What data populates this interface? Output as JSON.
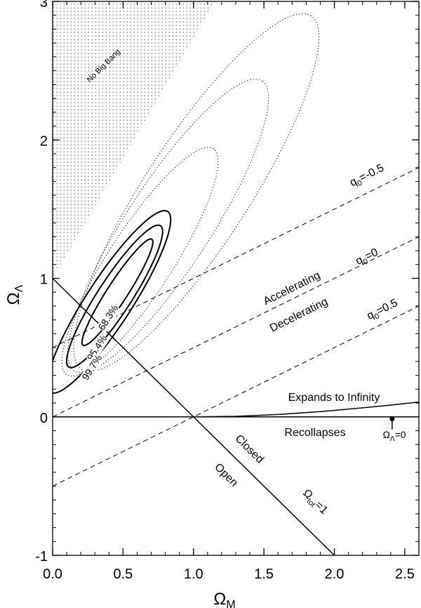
{
  "chart_data": {
    "type": "line",
    "xlabel": "Ω",
    "xlabel_sub": "M",
    "ylabel": "Ω",
    "ylabel_sub": "Λ",
    "xlim": [
      0.0,
      2.6
    ],
    "ylim": [
      -1,
      3
    ],
    "x_ticks": [
      0.0,
      0.5,
      1.0,
      1.5,
      2.0,
      2.5
    ],
    "x_tick_labels": [
      "0.0",
      "0.5",
      "1.0",
      "1.5",
      "2.0",
      "2.5"
    ],
    "y_ticks": [
      -1,
      0,
      1,
      2,
      3
    ],
    "y_tick_labels": [
      "-1",
      "0",
      "1",
      "2",
      "3"
    ],
    "grid": false,
    "confidence_contours": [
      {
        "label": "68.3%",
        "center": [
          0.46,
          0.9
        ],
        "a": 0.75,
        "b": 0.12,
        "angle_deg": 57,
        "style": "solid",
        "stroke_width": 2
      },
      {
        "label": "95.4%",
        "center": [
          0.44,
          0.87
        ],
        "a": 1.0,
        "b": 0.2,
        "angle_deg": 57,
        "style": "solid",
        "stroke_width": 2
      },
      {
        "label": "99.7%",
        "center": [
          0.4,
          0.83
        ],
        "a": 1.28,
        "b": 0.27,
        "angle_deg": 57,
        "style": "solid",
        "stroke_width": 2
      },
      {
        "label": "",
        "center": [
          0.62,
          1.12
        ],
        "a": 1.6,
        "b": 0.38,
        "angle_deg": 57,
        "style": "dotted",
        "stroke_width": 1
      },
      {
        "label": "",
        "center": [
          0.82,
          1.38
        ],
        "a": 2.05,
        "b": 0.5,
        "angle_deg": 57,
        "style": "dotted",
        "stroke_width": 1
      },
      {
        "label": "",
        "center": [
          1.02,
          1.62
        ],
        "a": 2.5,
        "b": 0.62,
        "angle_deg": 57,
        "style": "dotted",
        "stroke_width": 1
      }
    ],
    "lines": [
      {
        "name": "q0=-0.5",
        "style": "dashed",
        "x": [
          0.0,
          2.6
        ],
        "y": [
          0.5,
          1.8
        ]
      },
      {
        "name": "q0=0",
        "style": "dashed",
        "x": [
          0.0,
          2.6
        ],
        "y": [
          0.0,
          1.3
        ]
      },
      {
        "name": "q0=0.5",
        "style": "dashed",
        "x": [
          0.0,
          2.6
        ],
        "y": [
          -0.5,
          0.8
        ]
      },
      {
        "name": "Omega_tot=1",
        "style": "solid",
        "x": [
          0.0,
          2.0
        ],
        "y": [
          1.0,
          -1.0
        ]
      },
      {
        "name": "Omega_Lambda=0",
        "style": "solid",
        "x": [
          0.0,
          2.6
        ],
        "y": [
          0.0,
          0.0
        ]
      },
      {
        "name": "expands_recollapses_boundary",
        "style": "solid",
        "x": [
          1.0,
          1.3,
          1.6,
          1.9,
          2.2,
          2.4,
          2.6
        ],
        "y": [
          0.0,
          0.004,
          0.017,
          0.038,
          0.065,
          0.085,
          0.107
        ]
      }
    ],
    "no_big_bang_region": {
      "style": "stippled",
      "boundary_x": [
        0.0,
        0.0,
        1.15
      ],
      "boundary_y": [
        1.0,
        3.0,
        3.0
      ]
    },
    "markers": [
      {
        "label": "ΩΛ=0",
        "x": 2.41,
        "y": -0.03
      }
    ],
    "annotations": {
      "no_big_bang": "No Big Bang",
      "accelerating": "Accelerating",
      "decelerating": "Decelerating",
      "expands": "Expands to Infinity",
      "recollapses": "Recollapses",
      "closed": "Closed",
      "open": "Open",
      "q0_m05_base": "q",
      "q0_m05_sub": "0",
      "q0_m05_rest": "=-0.5",
      "q0_0_base": "q",
      "q0_0_sub": "0",
      "q0_0_rest": "=0",
      "q0_05_base": "q",
      "q0_05_sub": "0",
      "q0_05_rest": "=0.5",
      "omega_tot_base": "Ω",
      "omega_tot_sub": "tot",
      "omega_tot_rest": "=1",
      "omega_lambda_base": "Ω",
      "omega_lambda_sub": "Λ",
      "omega_lambda_rest": "=0"
    }
  }
}
